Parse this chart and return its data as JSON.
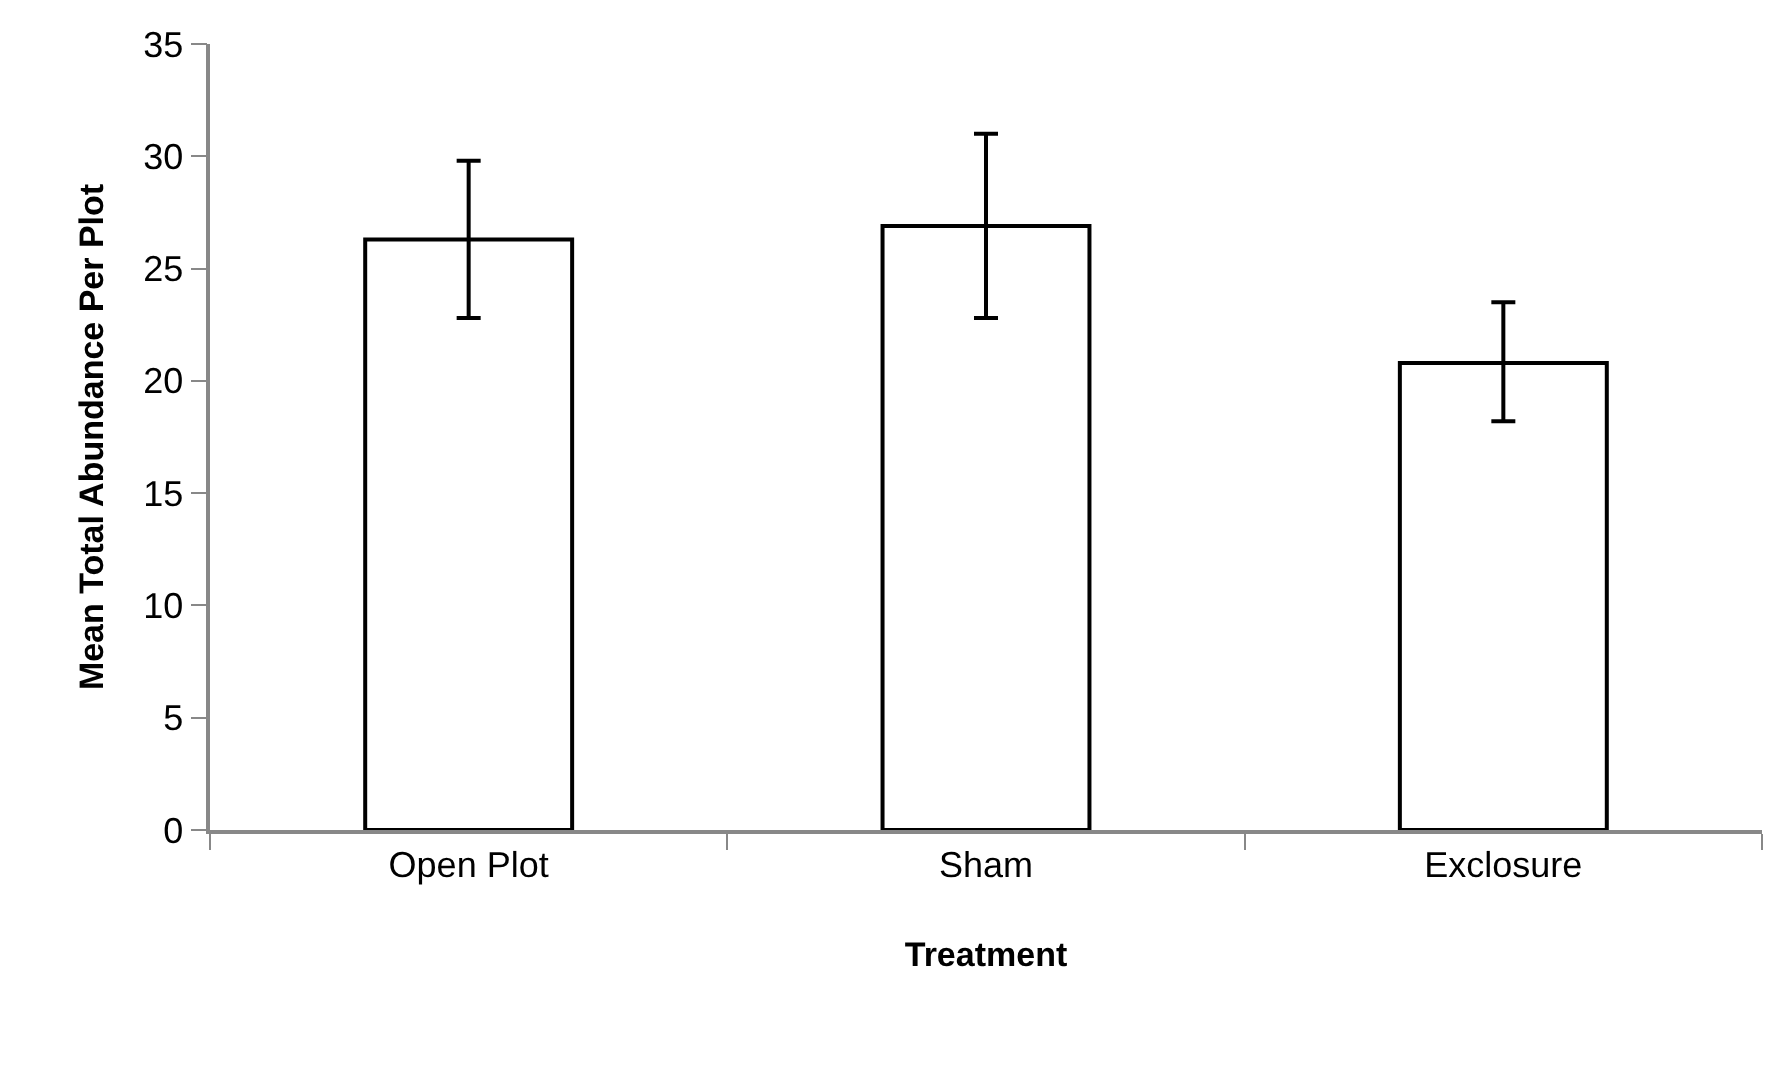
{
  "chart_data": {
    "type": "bar",
    "xlabel": "Treatment",
    "ylabel": "Mean Total Abundance Per Plot",
    "categories": [
      "Open Plot",
      "Sham",
      "Exclosure"
    ],
    "values": [
      26.3,
      26.9,
      20.8
    ],
    "color": "#ffffff",
    "errors": [
      [
        22.8,
        29.8
      ],
      [
        22.8,
        31.0
      ],
      [
        18.2,
        23.5
      ]
    ],
    "ylim": [
      0,
      35
    ],
    "yticks": [
      0,
      5,
      10,
      15,
      20,
      25,
      30,
      35
    ]
  }
}
